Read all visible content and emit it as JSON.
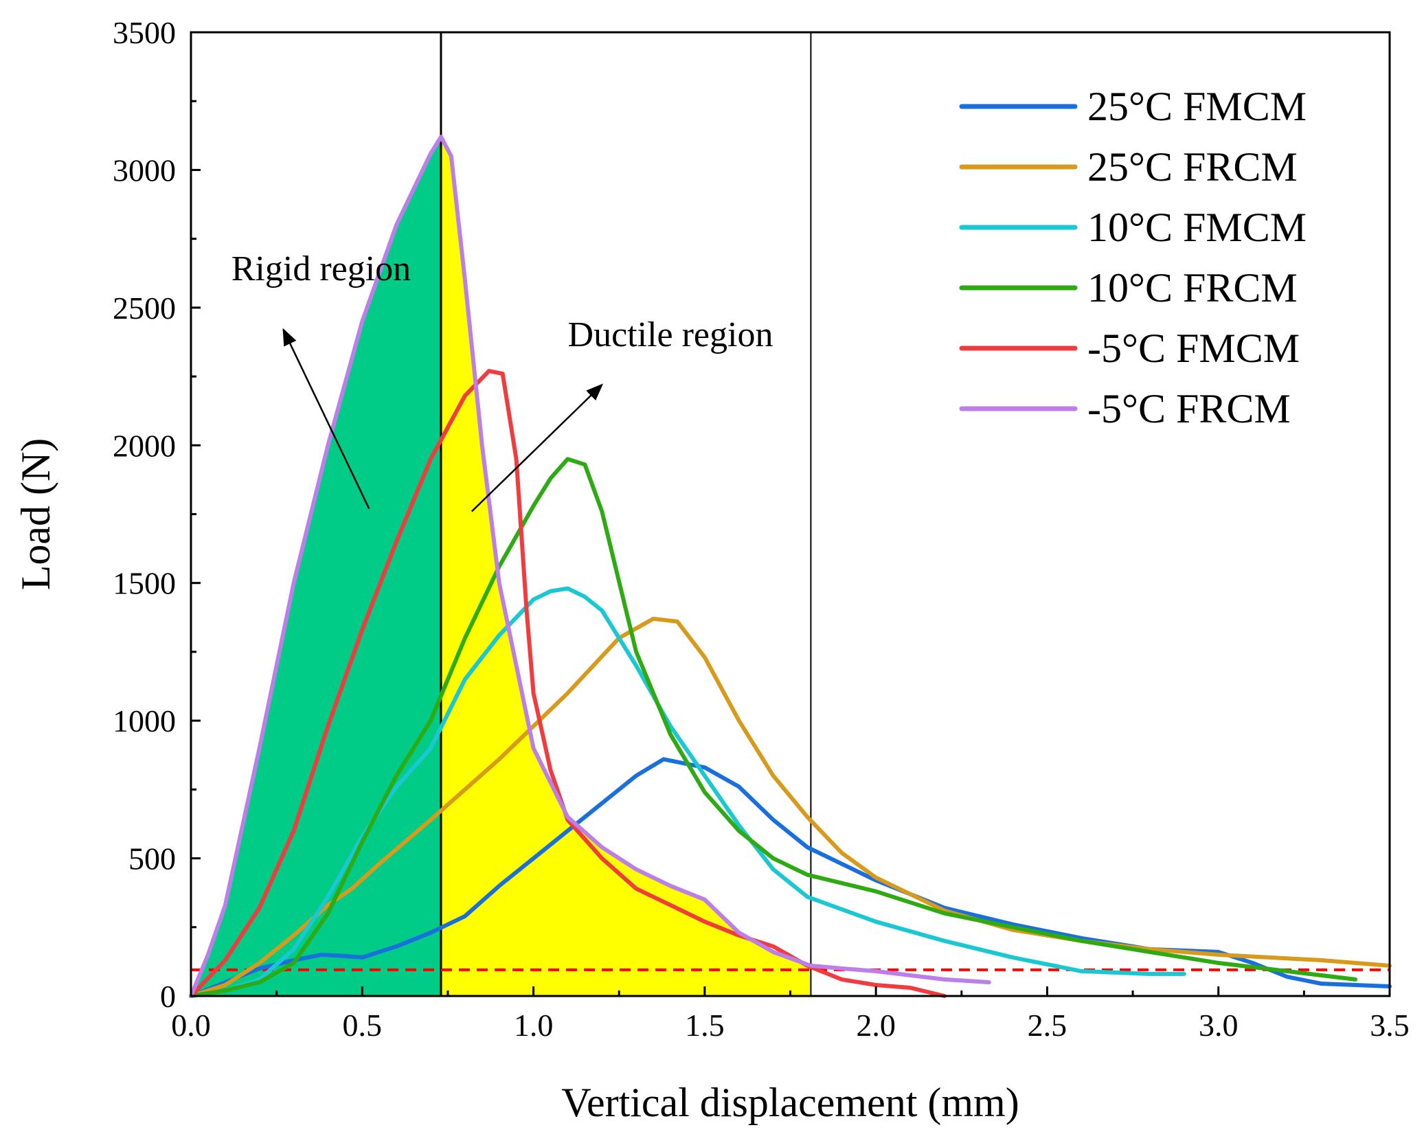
{
  "chart_data": {
    "type": "line",
    "xlabel": "Vertical displacement (mm)",
    "ylabel": "Load (N)",
    "xlim": [
      0,
      3.5
    ],
    "ylim": [
      0,
      3500
    ],
    "xticks": [
      0.0,
      0.5,
      1.0,
      1.5,
      2.0,
      2.5,
      3.0,
      3.5
    ],
    "xtick_labels": [
      "0.0",
      "0.5",
      "1.0",
      "1.5",
      "2.0",
      "2.5",
      "3.0",
      "3.5"
    ],
    "yticks": [
      0,
      500,
      1000,
      1500,
      2000,
      2500,
      3000,
      3500
    ],
    "ytick_labels": [
      "0",
      "500",
      "1000",
      "1500",
      "2000",
      "2500",
      "3000",
      "3500"
    ],
    "grid": false,
    "legend_position": "top-right",
    "vertical_lines": [
      0.73,
      1.81
    ],
    "threshold_line": {
      "y": 95,
      "color": "#ff0000",
      "style": "dashed"
    },
    "regions": [
      {
        "label": "Rigid region",
        "x_range": [
          0,
          0.73
        ],
        "color": "#00cc88",
        "follows_series": "-5°C FRCM"
      },
      {
        "label": "Ductile region",
        "x_range": [
          0.73,
          1.81
        ],
        "color": "#ffff00",
        "follows_series": "-5°C FRCM"
      }
    ],
    "annotations": [
      {
        "text": "Rigid region",
        "x": 0.38,
        "y": 2600,
        "arrow_from": [
          0.52,
          1770
        ],
        "arrow_to": [
          0.27,
          2420
        ]
      },
      {
        "text": "Ductile region",
        "x": 1.4,
        "y": 2360,
        "arrow_from": [
          0.82,
          1760
        ],
        "arrow_to": [
          1.2,
          2220
        ]
      }
    ],
    "series": [
      {
        "name": "25°C FMCM",
        "color": "#1a6fdf",
        "x": [
          0.0,
          0.1,
          0.2,
          0.3,
          0.38,
          0.45,
          0.5,
          0.6,
          0.7,
          0.8,
          0.9,
          1.0,
          1.1,
          1.2,
          1.3,
          1.38,
          1.5,
          1.6,
          1.7,
          1.8,
          2.0,
          2.2,
          2.4,
          2.6,
          2.8,
          3.0,
          3.1,
          3.2,
          3.3,
          3.5
        ],
        "y": [
          0,
          50,
          100,
          130,
          150,
          145,
          140,
          180,
          230,
          290,
          400,
          500,
          600,
          700,
          800,
          860,
          830,
          760,
          640,
          540,
          420,
          320,
          260,
          210,
          170,
          160,
          120,
          70,
          45,
          35
        ]
      },
      {
        "name": "25°C FRCM",
        "color": "#d89a1a",
        "x": [
          0.0,
          0.1,
          0.2,
          0.3,
          0.4,
          0.47,
          0.55,
          0.7,
          0.9,
          1.1,
          1.25,
          1.35,
          1.42,
          1.5,
          1.6,
          1.7,
          1.8,
          1.9,
          2.0,
          2.2,
          2.4,
          2.6,
          2.8,
          3.0,
          3.3,
          3.5
        ],
        "y": [
          0,
          40,
          120,
          220,
          330,
          390,
          480,
          640,
          860,
          1100,
          1300,
          1370,
          1360,
          1230,
          1000,
          800,
          650,
          520,
          430,
          310,
          240,
          200,
          170,
          150,
          130,
          110
        ]
      },
      {
        "name": "10°C FMCM",
        "color": "#19c8d2",
        "x": [
          0.0,
          0.1,
          0.2,
          0.3,
          0.4,
          0.5,
          0.6,
          0.7,
          0.8,
          0.9,
          1.0,
          1.05,
          1.1,
          1.15,
          1.2,
          1.3,
          1.4,
          1.5,
          1.6,
          1.7,
          1.8,
          2.0,
          2.2,
          2.4,
          2.6,
          2.8,
          2.9
        ],
        "y": [
          0,
          20,
          60,
          170,
          360,
          580,
          760,
          900,
          1150,
          1310,
          1440,
          1470,
          1480,
          1450,
          1400,
          1200,
          980,
          800,
          620,
          460,
          360,
          270,
          200,
          140,
          90,
          80,
          80
        ]
      },
      {
        "name": "10°C FRCM",
        "color": "#2eab12",
        "x": [
          0.0,
          0.1,
          0.2,
          0.3,
          0.4,
          0.5,
          0.6,
          0.7,
          0.8,
          0.9,
          1.0,
          1.05,
          1.1,
          1.15,
          1.2,
          1.3,
          1.4,
          1.5,
          1.6,
          1.7,
          1.8,
          2.0,
          2.2,
          2.4,
          2.6,
          2.8,
          3.0,
          3.2,
          3.4
        ],
        "y": [
          0,
          20,
          50,
          120,
          300,
          560,
          800,
          1000,
          1300,
          1560,
          1780,
          1880,
          1950,
          1930,
          1760,
          1250,
          950,
          740,
          600,
          500,
          440,
          380,
          300,
          250,
          200,
          160,
          120,
          90,
          60
        ]
      },
      {
        "name": "-5°C FMCM",
        "color": "#f03c3c",
        "x": [
          0.0,
          0.1,
          0.2,
          0.3,
          0.4,
          0.5,
          0.6,
          0.7,
          0.8,
          0.87,
          0.91,
          0.95,
          0.98,
          1.0,
          1.05,
          1.1,
          1.2,
          1.3,
          1.4,
          1.5,
          1.6,
          1.7,
          1.8,
          1.9,
          2.0,
          2.1,
          2.2
        ],
        "y": [
          0,
          130,
          320,
          600,
          980,
          1330,
          1650,
          1950,
          2180,
          2270,
          2260,
          1950,
          1400,
          1100,
          820,
          640,
          500,
          390,
          330,
          270,
          220,
          180,
          110,
          60,
          40,
          30,
          0
        ]
      },
      {
        "name": "-5°C FRCM",
        "color": "#bc7ee8",
        "x": [
          0.0,
          0.05,
          0.1,
          0.2,
          0.3,
          0.4,
          0.5,
          0.6,
          0.7,
          0.73,
          0.76,
          0.8,
          0.85,
          0.9,
          1.0,
          1.1,
          1.2,
          1.3,
          1.4,
          1.5,
          1.6,
          1.7,
          1.81,
          1.9,
          2.0,
          2.1,
          2.2,
          2.33
        ],
        "y": [
          0,
          150,
          330,
          900,
          1500,
          2000,
          2450,
          2800,
          3060,
          3120,
          3050,
          2600,
          2000,
          1500,
          900,
          650,
          540,
          460,
          400,
          350,
          230,
          160,
          110,
          100,
          90,
          75,
          60,
          50
        ]
      }
    ]
  }
}
